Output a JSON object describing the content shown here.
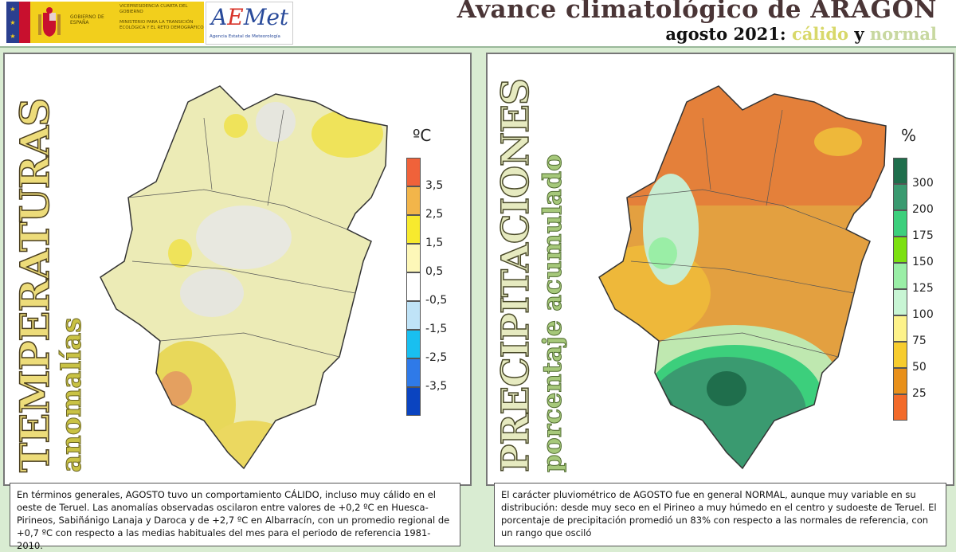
{
  "header": {
    "gov_name": "GOBIERNO DE ESPAÑA",
    "vicepresidencia": "VICEPRESIDENCIA CUARTA DEL GOBIERNO",
    "ministerio": "MINISTERIO PARA LA TRANSICIÓN ECOLÓGICA Y EL RETO DEMOGRÁFICO",
    "aemet_logo": "AEMet",
    "aemet_sub": "Agencia Estatal de Meteorología",
    "title": "Avance climatológico de ARAGON",
    "subtitle_prefix": "agosto 2021: ",
    "subtitle_warm": "cálido",
    "subtitle_and": " y ",
    "subtitle_normal": "normal"
  },
  "temperature": {
    "heading": "TEMPERATURAS",
    "subheading": "anomalías",
    "unit": "ºC",
    "legend_labels": [
      "3,5",
      "2,5",
      "1,5",
      "0,5",
      "-0,5",
      "-1,5",
      "-2,5",
      "-3,5"
    ],
    "legend_colors": [
      "#f0623a",
      "#f2b54a",
      "#f7ea2e",
      "#fdf7b8",
      "#ffffff",
      "#bfe3f7",
      "#19bff0",
      "#2f7ae8",
      "#0a44c0"
    ],
    "text": "En términos generales, AGOSTO tuvo un comportamiento CÁLIDO, incluso muy cálido en el oeste de Teruel. Las anomalías observadas oscilaron entre valores de +0,2 ºC en Huesca-Pirineos, Sabiñánigo Lanaja y Daroca y de +2,7 ºC en Albarracín, con un promedio regional de +0,7 ºC con respecto a las medias habituales del mes para el periodo de referencia 1981-2010."
  },
  "precipitation": {
    "heading": "PRECIPITACIONES",
    "subheading": "porcentaje acumulado",
    "unit": "%",
    "legend_labels": [
      "300",
      "200",
      "175",
      "150",
      "125",
      "100",
      "75",
      "50",
      "25"
    ],
    "legend_colors": [
      "#1f6e4c",
      "#3a9a70",
      "#3ccf7c",
      "#7ce010",
      "#9aeea6",
      "#c8f5d4",
      "#fdf28a",
      "#f7cc2e",
      "#e8901a",
      "#f26a2a"
    ],
    "text": "El carácter pluviométrico de AGOSTO fue en general NORMAL, aunque muy variable en su distribución: desde muy seco en el Pirineo a muy húmedo en el centro y sudoeste de Teruel. El porcentaje de precipitación promedió un 83% con respecto a las normales de referencia, con un rango que osciló"
  }
}
